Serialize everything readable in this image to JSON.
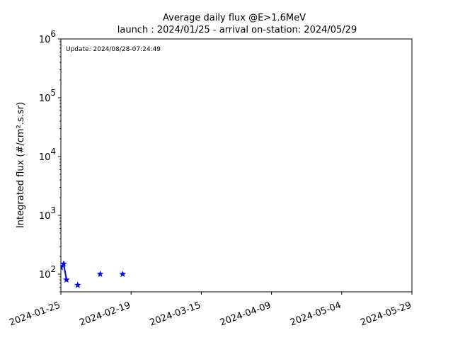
{
  "chart_data": {
    "type": "line",
    "title": "Average daily flux @E>1.6MeV",
    "subtitle": "launch : 2024/01/25 - arrival on-station: 2024/05/29",
    "annotation": "Update: 2024/08/28-07:24:49",
    "xlabel": "",
    "ylabel": "Integrated flux (#/cm².s.sr)",
    "yscale": "log",
    "ylim": [
      50,
      1000000
    ],
    "xlim": [
      "2024-01-25",
      "2024-05-29"
    ],
    "x_ticks": [
      "2024-01-25",
      "2024-02-19",
      "2024-03-15",
      "2024-04-09",
      "2024-05-04",
      "2024-05-29"
    ],
    "y_ticks": [
      {
        "value": 100,
        "base": "10",
        "exp": "2"
      },
      {
        "value": 1000,
        "base": "10",
        "exp": "3"
      },
      {
        "value": 10000,
        "base": "10",
        "exp": "4"
      },
      {
        "value": 100000,
        "base": "10",
        "exp": "5"
      },
      {
        "value": 1000000,
        "base": "10",
        "exp": "6"
      }
    ],
    "grid": false,
    "marker": "star",
    "line_color": "#0000ff",
    "series": [
      {
        "name": "",
        "x": [
          "2024-01-25",
          "2024-01-26",
          "2024-01-27",
          "2024-01-28",
          "2024-01-29",
          "2024-01-30",
          "2024-01-31",
          "2024-02-01",
          "2024-02-02",
          "2024-02-03",
          "2024-02-04",
          "2024-02-05",
          "2024-02-06",
          "2024-02-07",
          "2024-02-08",
          "2024-02-09",
          "2024-02-10",
          "2024-02-11",
          "2024-02-12",
          "2024-02-13",
          "2024-02-14",
          "2024-02-15",
          "2024-02-16",
          "2024-02-17",
          "2024-02-18",
          "2024-02-19",
          "2024-02-20",
          "2024-02-21",
          "2024-02-22",
          "2024-02-23",
          "2024-02-24",
          "2024-02-25",
          "2024-02-26",
          "2024-02-27",
          "2024-02-28",
          "2024-02-29",
          "2024-03-01",
          "2024-03-02",
          "2024-03-03",
          "2024-03-04",
          "2024-03-05",
          "2024-03-06",
          "2024-03-07",
          "2024-03-08",
          "2024-03-09",
          "2024-03-10",
          "2024-03-11",
          "2024-03-12",
          "2024-03-13",
          "2024-03-14",
          "2024-03-15",
          "2024-03-16",
          "2024-03-17",
          "2024-03-18",
          "2024-03-19",
          "2024-03-20",
          "2024-03-21",
          "2024-03-22",
          "2024-03-23",
          "2024-03-24",
          "2024-03-25",
          "2024-03-26",
          "2024-03-27",
          "2024-03-28",
          "2024-03-29",
          "2024-03-30",
          "2024-03-31",
          "2024-04-01",
          "2024-04-02",
          "2024-04-03",
          "2024-04-04",
          "2024-04-05",
          "2024-04-06",
          "2024-04-07",
          "2024-04-08",
          "2024-04-09",
          "2024-04-10",
          "2024-04-11",
          "2024-04-12",
          "2024-04-13",
          "2024-04-14",
          "2024-04-15",
          "2024-04-16",
          "2024-04-17",
          "2024-04-18",
          "2024-04-19",
          "2024-04-20",
          "2024-04-21",
          "2024-04-22",
          "2024-04-23",
          "2024-04-24",
          "2024-04-25",
          "2024-04-26",
          "2024-04-27",
          "2024-04-28",
          "2024-04-29",
          "2024-04-30",
          "2024-05-01",
          "2024-05-02",
          "2024-05-03",
          "2024-05-04",
          "2024-05-05",
          "2024-05-06",
          "2024-05-07",
          "2024-05-08",
          "2024-05-09",
          "2024-05-10",
          "2024-05-11",
          "2024-05-12",
          "2024-05-13",
          "2024-05-14",
          "2024-05-15",
          "2024-05-16",
          "2024-05-17",
          "2024-05-18",
          "2024-05-19",
          "2024-05-20",
          "2024-05-21",
          "2024-05-22",
          "2024-05-23",
          "2024-05-24",
          "2024-05-25",
          "2024-05-26",
          "2024-05-27",
          "2024-05-28",
          "2024-05-29"
        ],
        "y": [
          130,
          150,
          80,
          null,
          null,
          null,
          65,
          null,
          null,
          null,
          null,
          null,
          null,
          null,
          100,
          null,
          null,
          null,
          null,
          null,
          null,
          null,
          100,
          null,
          null,
          null,
          null,
          null,
          null,
          null,
          null,
          null,
          null,
          null,
          null,
          null,
          null,
          null,
          null,
          null,
          null,
          null,
          null,
          null,
          null,
          null,
          null,
          null,
          null,
          null,
          null,
          null,
          null,
          null,
          null,
          null,
          null,
          null,
          null,
          null,
          null,
          null,
          null,
          null,
          null,
          null,
          null,
          null,
          null,
          null,
          null,
          null,
          null,
          null,
          null,
          null,
          null,
          null,
          null,
          null,
          null,
          null,
          null,
          null,
          null,
          null,
          null,
          null,
          null,
          null,
          null,
          null,
          null,
          null,
          null,
          null,
          null,
          null,
          null,
          null,
          null,
          null,
          null,
          null,
          null,
          null,
          null,
          null,
          null,
          null,
          null,
          null,
          null,
          null,
          null,
          null,
          null,
          null,
          null,
          null,
          null,
          null,
          null,
          null,
          null,
          null
        ]
      }
    ]
  }
}
